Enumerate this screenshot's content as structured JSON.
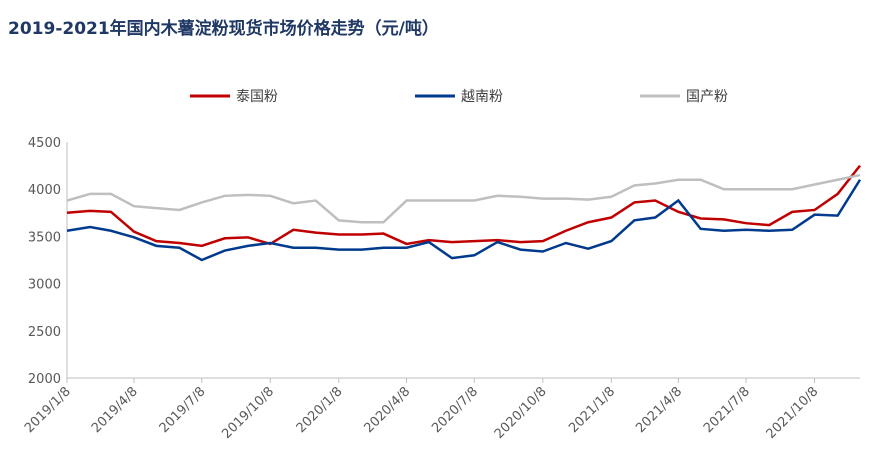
{
  "chart_data": {
    "type": "line",
    "title": "2019-2021年国内木薯淀粉现货市场价格走势（元/吨）",
    "x": [
      "2019/1/8",
      "2019/2/8",
      "2019/3/8",
      "2019/4/8",
      "2019/5/8",
      "2019/6/8",
      "2019/7/8",
      "2019/8/8",
      "2019/9/8",
      "2019/10/8",
      "2019/11/8",
      "2019/12/8",
      "2020/1/8",
      "2020/2/8",
      "2020/3/8",
      "2020/4/8",
      "2020/5/8",
      "2020/6/8",
      "2020/7/8",
      "2020/8/8",
      "2020/9/8",
      "2020/10/8",
      "2020/11/8",
      "2020/12/8",
      "2021/1/8",
      "2021/2/8",
      "2021/3/8",
      "2021/4/8",
      "2021/5/8",
      "2021/6/8",
      "2021/7/8",
      "2021/8/8",
      "2021/9/8",
      "2021/10/8",
      "2021/11/8",
      "2021/12/8"
    ],
    "series": [
      {
        "name": "泰国粉",
        "color": "#c00000",
        "values": [
          3750,
          3770,
          3760,
          3550,
          3450,
          3430,
          3400,
          3480,
          3490,
          3420,
          3570,
          3540,
          3520,
          3520,
          3530,
          3420,
          3460,
          3440,
          3450,
          3460,
          3440,
          3450,
          3560,
          3650,
          3700,
          3860,
          3880,
          3760,
          3690,
          3680,
          3640,
          3620,
          3760,
          3780,
          3950,
          4250
        ]
      },
      {
        "name": "越南粉",
        "color": "#003a8c",
        "values": [
          3560,
          3600,
          3560,
          3490,
          3400,
          3380,
          3250,
          3350,
          3400,
          3430,
          3380,
          3380,
          3360,
          3360,
          3380,
          3380,
          3440,
          3270,
          3300,
          3440,
          3360,
          3340,
          3430,
          3370,
          3450,
          3670,
          3700,
          3880,
          3580,
          3560,
          3570,
          3560,
          3570,
          3730,
          3720,
          4100
        ]
      },
      {
        "name": "国产粉",
        "color": "#bfbfbf",
        "values": [
          3880,
          3950,
          3950,
          3820,
          3800,
          3780,
          3860,
          3930,
          3940,
          3930,
          3850,
          3880,
          3670,
          3650,
          3650,
          3880,
          3880,
          3880,
          3880,
          3930,
          3920,
          3900,
          3900,
          3890,
          3920,
          4040,
          4060,
          4100,
          4100,
          4000,
          4000,
          4000,
          4000,
          4050,
          4100,
          4150
        ]
      }
    ],
    "xlim": [
      "2019/1/8",
      "2021/12/8"
    ],
    "xticks": [
      "2019/1/8",
      "2019/4/8",
      "2019/7/8",
      "2019/10/8",
      "2020/1/8",
      "2020/4/8",
      "2020/7/8",
      "2020/10/8",
      "2021/1/8",
      "2021/4/8",
      "2021/7/8",
      "2021/10/8"
    ],
    "ylim": [
      2000,
      4500
    ],
    "yticks": [
      2000,
      2500,
      3000,
      3500,
      4000,
      4500
    ],
    "legend": "top"
  }
}
